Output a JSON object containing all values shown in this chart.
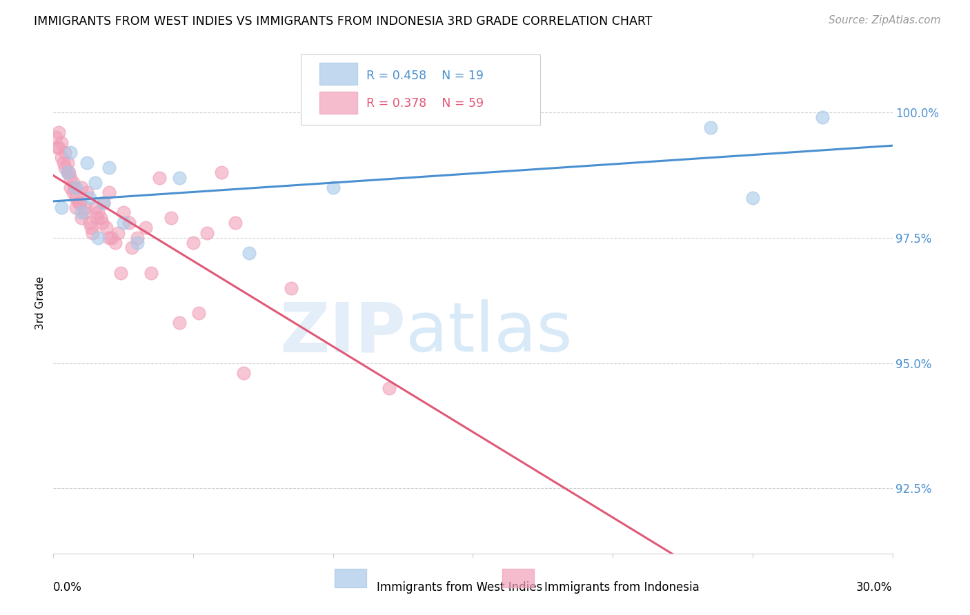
{
  "title": "IMMIGRANTS FROM WEST INDIES VS IMMIGRANTS FROM INDONESIA 3RD GRADE CORRELATION CHART",
  "source": "Source: ZipAtlas.com",
  "ylabel": "3rd Grade",
  "y_ticks": [
    92.5,
    95.0,
    97.5,
    100.0
  ],
  "y_tick_labels": [
    "92.5%",
    "95.0%",
    "97.5%",
    "100.0%"
  ],
  "xlim": [
    0.0,
    30.0
  ],
  "ylim": [
    91.2,
    101.2
  ],
  "blue_color": "#a8c8e8",
  "pink_color": "#f0a0b8",
  "blue_line_color": "#4a90d0",
  "pink_line_color": "#e05878",
  "watermark_zip": "ZIP",
  "watermark_atlas": "atlas",
  "blue_scatter_x": [
    0.3,
    0.5,
    0.6,
    0.8,
    1.0,
    1.2,
    1.3,
    1.5,
    1.8,
    2.0,
    2.5,
    3.0,
    4.5,
    7.0,
    10.0,
    23.5,
    25.0,
    27.5,
    1.6
  ],
  "blue_scatter_y": [
    98.1,
    98.8,
    99.2,
    98.5,
    98.0,
    99.0,
    98.3,
    98.6,
    98.2,
    98.9,
    97.8,
    97.4,
    98.7,
    97.2,
    98.5,
    99.7,
    98.3,
    99.9,
    97.5
  ],
  "pink_scatter_x": [
    0.1,
    0.2,
    0.2,
    0.3,
    0.3,
    0.4,
    0.4,
    0.5,
    0.5,
    0.6,
    0.6,
    0.7,
    0.7,
    0.8,
    0.8,
    0.9,
    1.0,
    1.0,
    1.1,
    1.2,
    1.3,
    1.4,
    1.5,
    1.6,
    1.7,
    1.8,
    1.9,
    2.0,
    2.1,
    2.2,
    2.3,
    2.5,
    2.7,
    3.0,
    3.3,
    3.8,
    4.2,
    5.0,
    5.5,
    6.0,
    6.5,
    0.15,
    0.35,
    0.55,
    0.75,
    0.95,
    1.15,
    1.35,
    1.55,
    1.75,
    2.0,
    2.4,
    2.8,
    3.5,
    4.5,
    5.2,
    6.8,
    8.5,
    12.0
  ],
  "pink_scatter_y": [
    99.5,
    99.6,
    99.3,
    99.4,
    99.1,
    99.2,
    98.9,
    98.8,
    99.0,
    98.7,
    98.5,
    98.6,
    98.4,
    98.3,
    98.1,
    98.2,
    98.5,
    97.9,
    98.0,
    98.4,
    97.8,
    97.6,
    98.1,
    98.0,
    97.9,
    98.2,
    97.7,
    98.4,
    97.5,
    97.4,
    97.6,
    98.0,
    97.8,
    97.5,
    97.7,
    98.7,
    97.9,
    97.4,
    97.6,
    98.8,
    97.8,
    99.3,
    99.0,
    98.8,
    98.5,
    98.2,
    98.1,
    97.7,
    97.9,
    97.8,
    97.5,
    96.8,
    97.3,
    96.8,
    95.8,
    96.0,
    94.8,
    96.5,
    94.5
  ],
  "bottom_legend_blue": "Immigrants from West Indies",
  "bottom_legend_pink": "Immigrants from Indonesia",
  "legend_blue_r": "R = 0.458",
  "legend_blue_n": "N = 19",
  "legend_pink_r": "R = 0.378",
  "legend_pink_n": "N = 59"
}
